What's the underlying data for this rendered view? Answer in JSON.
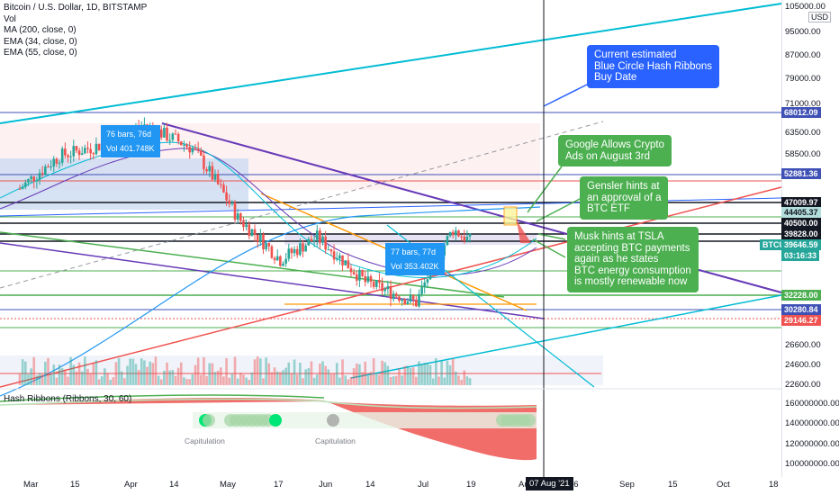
{
  "legend": {
    "title": "Bitcoin / U.S. Dollar, 1D, BITSTAMP",
    "vol": "Vol",
    "ma": "MA (200, close, 0)",
    "ema34": "EMA (34, close, 0)",
    "ema55": "EMA (55, close, 0)"
  },
  "currency": "USD",
  "price_axis": [
    "105000.00",
    "95000.00",
    "87000.00",
    "79000.00",
    "71000.00",
    "63500.00",
    "58500.00",
    "52881.36",
    "47009.97",
    "40500.00",
    "39828.00",
    "32228.00",
    "30280.84",
    "29146.27",
    "26600.00",
    "24600.00",
    "22600.00"
  ],
  "price_tags": {
    "p68012": "68012.09",
    "p52881": "52881.36",
    "p47009": "47009.97",
    "p44405": "44405.37",
    "p40500": "40500.00",
    "p39828": "39828.00",
    "btcusd_label": "BTCUSD",
    "btcusd": "39646.59",
    "countdown": "03:16:33",
    "p32228": "32228.00",
    "p30280": "30280.84",
    "p29146": "29146.27"
  },
  "subchart": {
    "title": "Hash Ribbons (Ribbons, 30, 60)",
    "axis": [
      "160000000.00",
      "140000000.00",
      "120000000.00",
      "100000000.00"
    ],
    "capitulation_labels": [
      "Capitulation",
      "Capitulation"
    ]
  },
  "time_axis": [
    "Mar",
    "15",
    "Apr",
    "14",
    "May",
    "17",
    "Jun",
    "14",
    "Jul",
    "19",
    "Au",
    "16",
    "Sep",
    "15",
    "Oct",
    "18"
  ],
  "cursor_date": "07 Aug '21",
  "annotations": {
    "blue_note": [
      "Current estimated",
      "Blue Circle Hash Ribbons",
      "Buy Date"
    ],
    "google_note": [
      "Google Allows Crypto",
      "Ads on August 3rd"
    ],
    "gensler_note": [
      "Gensler hints at",
      "an approval of a",
      "BTC ETF"
    ],
    "musk_note": [
      "Musk hints at TSLA",
      "accepting BTC payments",
      "again as he states",
      "BTC energy consumption",
      "is mostly renewable now"
    ],
    "range1": [
      "76 bars, 76d",
      "Vol 401.748K"
    ],
    "range2": [
      "77 bars, 77d",
      "Vol 353.402K"
    ]
  },
  "colors": {
    "up": "#26a69a",
    "down": "#ef5350",
    "blue": "#2962ff",
    "green": "#4caf50",
    "purple": "#673ab7",
    "teal": "#00bcd4"
  },
  "chart_data": {
    "type": "line",
    "title": "Bitcoin / U.S. Dollar, 1D, BITSTAMP",
    "x_range": [
      "2021-02-22",
      "2021-11-25"
    ],
    "y_range": [
      22000,
      105000
    ],
    "y_scale": "log",
    "series": [
      {
        "name": "",
        "x": [
          "2021-03-01",
          "2021-03-15",
          "2021-04-01",
          "2021-04-14",
          "2021-05-01",
          "2021-05-17",
          "2021-06-01",
          "2021-06-14",
          "2021-07-01",
          "2021-07-19",
          "2021-08-01",
          "2021-08-07"
        ],
        "values": [
          49000,
          56000,
          59000,
          63500,
          57800,
          43500,
          36700,
          40200,
          33500,
          30800,
          41500,
          39646
        ]
      }
    ],
    "last_price": 39646.59
  }
}
